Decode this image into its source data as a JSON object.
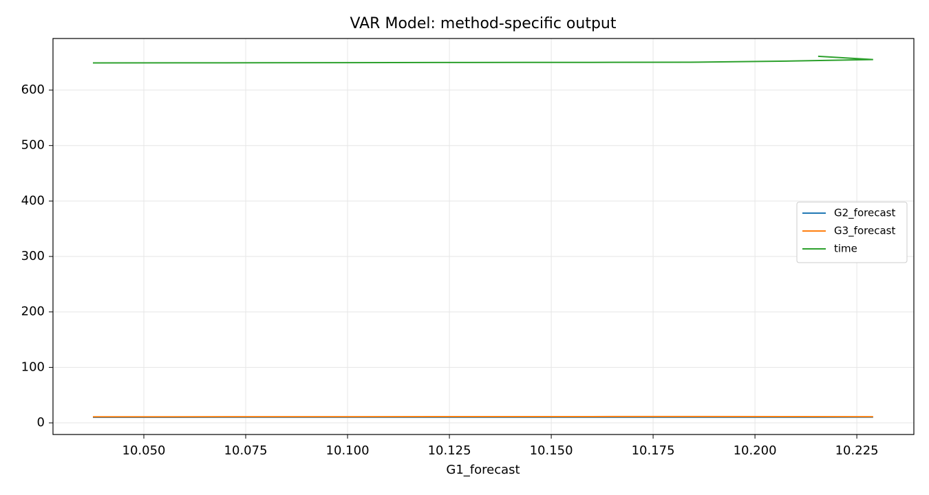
{
  "chart_data": {
    "type": "line",
    "title": "VAR Model: method-specific output",
    "xlabel": "G1_forecast",
    "x": [
      10.0375,
      10.07,
      10.1,
      10.13,
      10.16,
      10.184,
      10.21,
      10.229,
      10.2155
    ],
    "series": [
      {
        "name": "G2_forecast",
        "color": "#1f77b4",
        "values": [
          10.04,
          10.07,
          10.1,
          10.13,
          10.16,
          10.18,
          10.21,
          10.23,
          10.22
        ]
      },
      {
        "name": "G3_forecast",
        "color": "#ff7f0e",
        "values": [
          10.9,
          11,
          11.1,
          11.2,
          11.3,
          11.4,
          11.2,
          11.1,
          11
        ]
      },
      {
        "name": "time",
        "color": "#2ca02c",
        "values": [
          649,
          649.2,
          649.5,
          649.8,
          650,
          650.2,
          652.5,
          655,
          661
        ]
      }
    ],
    "xlim": [
      10.0277,
      10.239
    ],
    "ylim": [
      -21,
      693
    ],
    "xticks": [
      {
        "value": 10.05,
        "label": "10.050"
      },
      {
        "value": 10.075,
        "label": "10.075"
      },
      {
        "value": 10.1,
        "label": "10.100"
      },
      {
        "value": 10.125,
        "label": "10.125"
      },
      {
        "value": 10.15,
        "label": "10.150"
      },
      {
        "value": 10.175,
        "label": "10.175"
      },
      {
        "value": 10.2,
        "label": "10.200"
      },
      {
        "value": 10.225,
        "label": "10.225"
      }
    ],
    "yticks": [
      0,
      100,
      200,
      300,
      400,
      500,
      600
    ],
    "grid": true,
    "legend": "right"
  }
}
